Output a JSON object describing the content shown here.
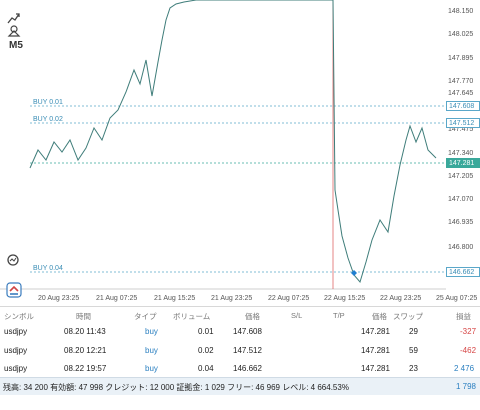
{
  "chart": {
    "timeframe": "M5",
    "price_labels": [
      "148.150",
      "148.025",
      "147.895",
      "147.770",
      "147.645",
      "147.475",
      "147.340",
      "147.205",
      "147.070",
      "146.935",
      "146.800",
      "146.665"
    ],
    "badges": {
      "buy_001": "147.608",
      "buy_002": "147.512",
      "current": "147.281",
      "buy_004": "146.662"
    },
    "order_lines": {
      "buy_001": "BUY 0.01",
      "buy_002": "BUY 0.02",
      "buy_004": "BUY 0.04"
    },
    "time_labels": [
      "20 Aug 23:25",
      "21 Aug 07:25",
      "21 Aug 15:25",
      "21 Aug 23:25",
      "22 Aug 07:25",
      "22 Aug 15:25",
      "22 Aug 23:25",
      "25 Aug 07:25"
    ],
    "colors": {
      "candle_line": "#3f7d7a",
      "order_line": "#5aa7c9",
      "current_line": "#3aa89a",
      "entry_marker": "#1f7fd0",
      "vertical_marker": "#e06666"
    }
  },
  "table": {
    "headers": [
      "シンボル",
      "時間",
      "タイプ",
      "ボリューム",
      "価格",
      "S/L",
      "T/P",
      "価格",
      "スワップ",
      "損益"
    ],
    "rows": [
      {
        "symbol": "usdjpy",
        "time": "08.20 11:43",
        "type": "buy",
        "volume": "0.01",
        "open_price": "147.608",
        "sl": "",
        "tp": "",
        "price": "147.281",
        "swap": "29",
        "profit": "-327"
      },
      {
        "symbol": "usdjpy",
        "time": "08.20 12:21",
        "type": "buy",
        "volume": "0.02",
        "open_price": "147.512",
        "sl": "",
        "tp": "",
        "price": "147.281",
        "swap": "59",
        "profit": "-462"
      },
      {
        "symbol": "usdjpy",
        "time": "08.22 19:57",
        "type": "buy",
        "volume": "0.04",
        "open_price": "146.662",
        "sl": "",
        "tp": "",
        "price": "147.281",
        "swap": "23",
        "profit": "2 476"
      }
    ]
  },
  "footer": {
    "summary": "残高: 34 200 有効額: 47 998 クレジット: 12 000 証拠金: 1 029 フリー: 46 969 レベル: 4 664.53%",
    "total": "1 798"
  }
}
